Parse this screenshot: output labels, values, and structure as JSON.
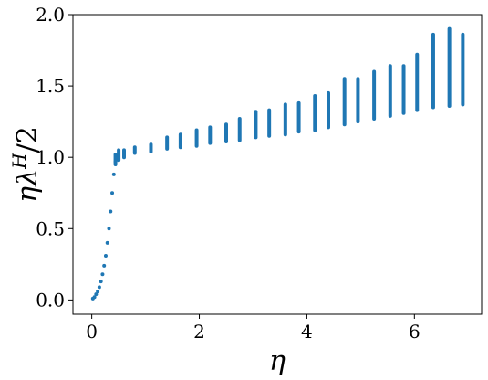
{
  "chart_data": {
    "type": "scatter",
    "xlabel": "η",
    "ylabel": {
      "base": "ηλ",
      "superscript": "H",
      "suffix": "/2"
    },
    "xlim": [
      -0.35,
      7.25
    ],
    "ylim": [
      -0.1,
      2.0
    ],
    "xticks": [
      0,
      2,
      4,
      6
    ],
    "yticks": [
      0.0,
      0.5,
      1.0,
      1.5,
      2.0
    ],
    "xtick_labels": [
      "0",
      "2",
      "4",
      "6"
    ],
    "ytick_labels": [
      "0.0",
      "0.5",
      "1.0",
      "1.5",
      "2.0"
    ],
    "grid": false,
    "marker_color": "#1f77b4",
    "series": [
      {
        "points": [
          [
            0.02,
            0.01
          ],
          [
            0.05,
            0.02
          ],
          [
            0.08,
            0.04
          ],
          [
            0.11,
            0.06
          ],
          [
            0.14,
            0.09
          ],
          [
            0.17,
            0.13
          ],
          [
            0.2,
            0.18
          ],
          [
            0.23,
            0.24
          ],
          [
            0.26,
            0.31
          ],
          [
            0.29,
            0.4
          ],
          [
            0.32,
            0.5
          ],
          [
            0.35,
            0.62
          ],
          [
            0.38,
            0.75
          ],
          [
            0.41,
            0.88
          ],
          [
            0.44,
            0.97
          ]
        ]
      }
    ],
    "columns": [
      {
        "x": 0.44,
        "ymin": 0.95,
        "ymax": 1.02
      },
      {
        "x": 0.5,
        "ymin": 0.98,
        "ymax": 1.05
      },
      {
        "x": 0.6,
        "ymin": 1.0,
        "ymax": 1.05
      },
      {
        "x": 0.8,
        "ymin": 1.03,
        "ymax": 1.07
      },
      {
        "x": 1.1,
        "ymin": 1.04,
        "ymax": 1.09
      },
      {
        "x": 1.4,
        "ymin": 1.06,
        "ymax": 1.14
      },
      {
        "x": 1.65,
        "ymin": 1.07,
        "ymax": 1.16
      },
      {
        "x": 1.95,
        "ymin": 1.08,
        "ymax": 1.19
      },
      {
        "x": 2.2,
        "ymin": 1.1,
        "ymax": 1.21
      },
      {
        "x": 2.5,
        "ymin": 1.11,
        "ymax": 1.23
      },
      {
        "x": 2.75,
        "ymin": 1.12,
        "ymax": 1.27
      },
      {
        "x": 3.05,
        "ymin": 1.14,
        "ymax": 1.32
      },
      {
        "x": 3.3,
        "ymin": 1.15,
        "ymax": 1.33
      },
      {
        "x": 3.6,
        "ymin": 1.16,
        "ymax": 1.37
      },
      {
        "x": 3.85,
        "ymin": 1.18,
        "ymax": 1.38
      },
      {
        "x": 4.15,
        "ymin": 1.19,
        "ymax": 1.43
      },
      {
        "x": 4.4,
        "ymin": 1.21,
        "ymax": 1.45
      },
      {
        "x": 4.7,
        "ymin": 1.23,
        "ymax": 1.55
      },
      {
        "x": 4.95,
        "ymin": 1.25,
        "ymax": 1.55
      },
      {
        "x": 5.25,
        "ymin": 1.27,
        "ymax": 1.6
      },
      {
        "x": 5.55,
        "ymin": 1.29,
        "ymax": 1.64
      },
      {
        "x": 5.8,
        "ymin": 1.31,
        "ymax": 1.64
      },
      {
        "x": 6.05,
        "ymin": 1.33,
        "ymax": 1.72
      },
      {
        "x": 6.35,
        "ymin": 1.35,
        "ymax": 1.86
      },
      {
        "x": 6.65,
        "ymin": 1.36,
        "ymax": 1.9
      },
      {
        "x": 6.9,
        "ymin": 1.37,
        "ymax": 1.86
      }
    ]
  }
}
